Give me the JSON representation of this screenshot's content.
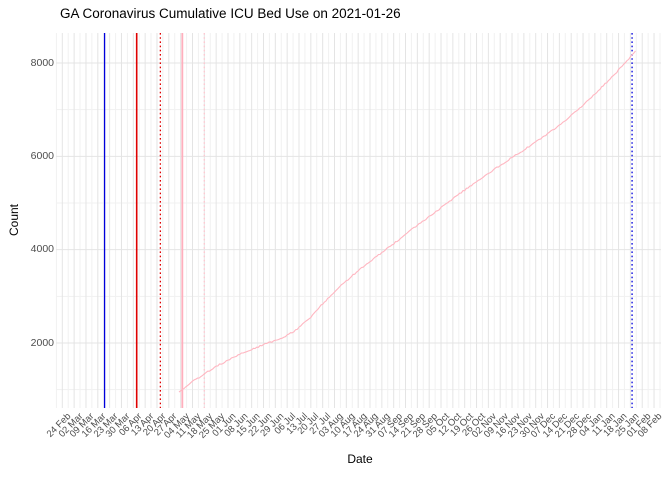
{
  "chart_data": {
    "type": "line",
    "title": "GA Coronavirus Cumulative ICU Bed Use on 2021-01-26",
    "xlabel": "Date",
    "ylabel": "Count",
    "grid": true,
    "legend": false,
    "x_start_date": "2020-02-24",
    "x_tick_interval_days": 7,
    "x_tick_labels": [
      "24 Feb",
      "02 Mar",
      "09 Mar",
      "16 Mar",
      "23 Mar",
      "30 Mar",
      "06 Apr",
      "13 Apr",
      "20 Apr",
      "27 Apr",
      "04 May",
      "11 May",
      "18 May",
      "25 May",
      "01 Jun",
      "08 Jun",
      "15 Jun",
      "22 Jun",
      "29 Jun",
      "06 Jul",
      "13 Jul",
      "20 Jul",
      "27 Jul",
      "03 Aug",
      "10 Aug",
      "17 Aug",
      "24 Aug",
      "31 Aug",
      "07 Sep",
      "14 Sep",
      "21 Sep",
      "28 Sep",
      "05 Oct",
      "12 Oct",
      "19 Oct",
      "26 Oct",
      "02 Nov",
      "09 Nov",
      "16 Nov",
      "23 Nov",
      "30 Nov",
      "07 Dec",
      "14 Dec",
      "21 Dec",
      "28 Dec",
      "04 Jan",
      "11 Jan",
      "18 Jan",
      "25 Jan",
      "01 Feb",
      "08 Feb"
    ],
    "y_ticks": [
      2000,
      4000,
      6000,
      8000
    ],
    "y_minor_ticks": [
      1000,
      3000,
      5000,
      7000
    ],
    "ylim": [
      700,
      8650
    ],
    "series": [
      {
        "name": "Cumulative ICU bed use",
        "color": "#FFB6C1",
        "points": [
          [
            "2020-05-03",
            950
          ],
          [
            "2020-05-10",
            1150
          ],
          [
            "2020-05-17",
            1310
          ],
          [
            "2020-05-24",
            1480
          ],
          [
            "2020-05-31",
            1610
          ],
          [
            "2020-06-07",
            1740
          ],
          [
            "2020-06-14",
            1850
          ],
          [
            "2020-06-21",
            1950
          ],
          [
            "2020-06-28",
            2040
          ],
          [
            "2020-07-05",
            2140
          ],
          [
            "2020-07-12",
            2300
          ],
          [
            "2020-07-19",
            2520
          ],
          [
            "2020-07-26",
            2800
          ],
          [
            "2020-08-02",
            3060
          ],
          [
            "2020-08-09",
            3300
          ],
          [
            "2020-08-16",
            3520
          ],
          [
            "2020-08-23",
            3720
          ],
          [
            "2020-08-30",
            3910
          ],
          [
            "2020-09-06",
            4100
          ],
          [
            "2020-09-13",
            4300
          ],
          [
            "2020-09-20",
            4500
          ],
          [
            "2020-09-27",
            4680
          ],
          [
            "2020-10-04",
            4870
          ],
          [
            "2020-10-11",
            5060
          ],
          [
            "2020-10-18",
            5250
          ],
          [
            "2020-10-25",
            5430
          ],
          [
            "2020-11-01",
            5610
          ],
          [
            "2020-11-08",
            5780
          ],
          [
            "2020-11-15",
            5950
          ],
          [
            "2020-11-22",
            6110
          ],
          [
            "2020-11-29",
            6280
          ],
          [
            "2020-12-06",
            6450
          ],
          [
            "2020-12-13",
            6640
          ],
          [
            "2020-12-20",
            6840
          ],
          [
            "2020-12-27",
            7060
          ],
          [
            "2021-01-03",
            7300
          ],
          [
            "2021-01-10",
            7550
          ],
          [
            "2021-01-17",
            7810
          ],
          [
            "2021-01-24",
            8080
          ],
          [
            "2021-01-28",
            8260
          ]
        ]
      }
    ],
    "vlines": [
      {
        "name": "event-line-blue-solid",
        "date": "2020-03-20",
        "color": "#0000DC",
        "style": "solid",
        "width": 1.3
      },
      {
        "name": "event-line-red-solid",
        "date": "2020-04-08",
        "color": "#DF0000",
        "style": "solid",
        "width": 1.6
      },
      {
        "name": "event-line-red-dotted",
        "date": "2020-04-22",
        "color": "#DF0000",
        "style": "dotted",
        "width": 1.3
      },
      {
        "name": "event-line-pink-solid",
        "date": "2020-05-05",
        "color": "#FFAFBD",
        "style": "solid",
        "width": 1.8
      },
      {
        "name": "event-line-pink-dotted",
        "date": "2020-05-18",
        "color": "#FFC9D2",
        "style": "dotted",
        "width": 1.4
      },
      {
        "name": "report-date-line",
        "date": "2021-01-26",
        "color": "#0000DC",
        "style": "dotted",
        "width": 1.3
      }
    ],
    "colors": {
      "background": "#FFFFFF",
      "major_grid": "#E4E4E4",
      "minor_grid": "#F1F1F1",
      "tick_label": "#4D4D4D",
      "axis_title": "#000000",
      "title": "#000000",
      "series_line": "#FFB6C1"
    }
  }
}
